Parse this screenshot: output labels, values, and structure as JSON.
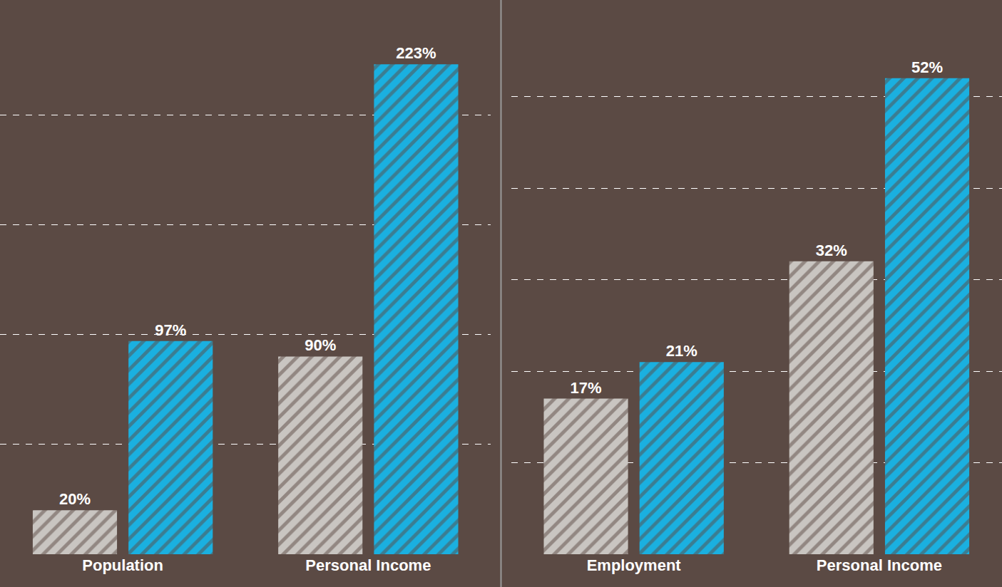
{
  "chart_data": [
    {
      "type": "bar",
      "categories": [
        "Population",
        "Personal Income"
      ],
      "series": [
        {
          "color": "#c9c5c1",
          "values": [
            20,
            90
          ],
          "value_labels": [
            "20%",
            "90%"
          ]
        },
        {
          "color": "#1ab0e0",
          "values": [
            97,
            223
          ],
          "value_labels": [
            "97%",
            "223%"
          ]
        }
      ],
      "ylim": [
        0,
        250
      ],
      "yticks": [
        0,
        50,
        100,
        150,
        200,
        250
      ],
      "grid": true,
      "data_labels": true,
      "tick_labels": "x"
    },
    {
      "type": "bar",
      "categories": [
        "Employment",
        "Personal Income"
      ],
      "series": [
        {
          "color": "#c9c5c1",
          "values": [
            17,
            32
          ],
          "value_labels": [
            "17%",
            "32%"
          ]
        },
        {
          "color": "#1ab0e0",
          "values": [
            21,
            52
          ],
          "value_labels": [
            "21%",
            "52%"
          ]
        }
      ],
      "ylim": [
        0,
        60
      ],
      "yticks": [
        0,
        10,
        20,
        30,
        40,
        50,
        60
      ],
      "grid": true,
      "data_labels": true,
      "tick_labels": "x"
    }
  ]
}
